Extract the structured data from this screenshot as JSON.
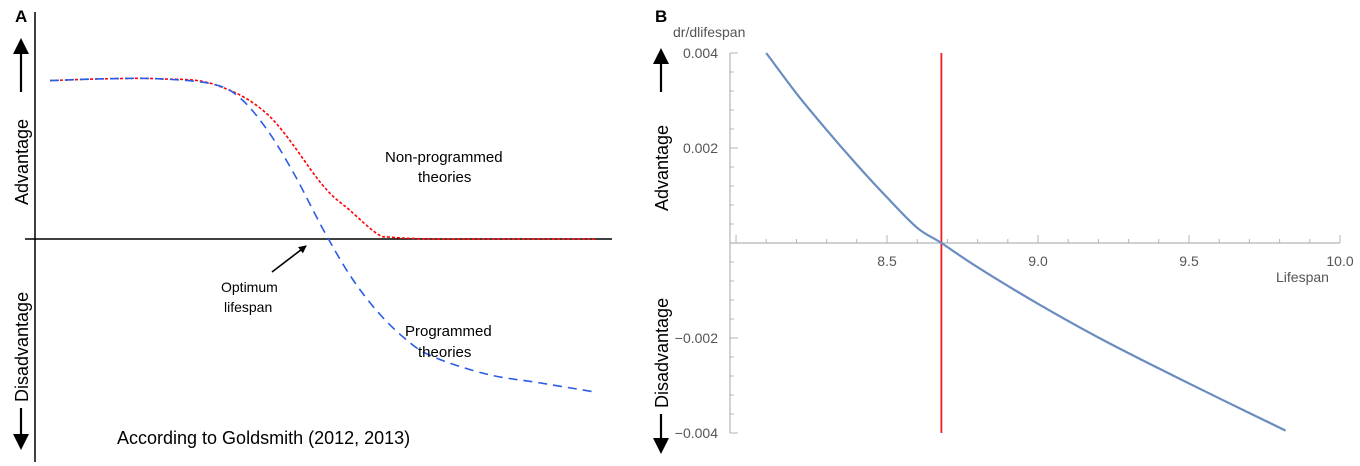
{
  "chart_data": [
    {
      "type": "line",
      "panel_label": "A",
      "title": "",
      "xlabel": "",
      "ylabel_positive": "Advantage",
      "ylabel_negative": "Disadvantage",
      "annotations": {
        "upper_curve_label": [
          "Non-programmed",
          "theories"
        ],
        "lower_curve_label": [
          "Programmed",
          "theories"
        ],
        "arrow_label": [
          "Optimum",
          "lifespan"
        ],
        "caption": "According to Goldsmith (2012, 2013)"
      },
      "series": [
        {
          "style": "red dotted",
          "color": "#ff0000",
          "x": [
            0,
            0.1,
            0.2,
            0.3,
            0.4,
            0.5,
            0.55,
            0.6,
            0.625,
            0.7,
            0.8,
            0.9,
            1.0
          ],
          "y": [
            0.88,
            0.89,
            0.89,
            0.86,
            0.69,
            0.3,
            0.16,
            0.03,
            0.01,
            0.0,
            0.0,
            0.0,
            0.0
          ]
        },
        {
          "style": "blue dashed",
          "color": "#2b5ce6",
          "x": [
            0,
            0.1,
            0.2,
            0.3,
            0.35,
            0.4,
            0.45,
            0.5,
            0.55,
            0.6,
            0.65,
            0.7,
            0.8,
            0.9,
            1.0
          ],
          "y": [
            0.88,
            0.89,
            0.89,
            0.86,
            0.78,
            0.6,
            0.35,
            0.06,
            -0.2,
            -0.4,
            -0.55,
            -0.65,
            -0.75,
            -0.8,
            -0.85
          ]
        }
      ]
    },
    {
      "type": "line",
      "panel_label": "B",
      "title": "",
      "ylabel": "dr/dlifespan",
      "xlabel": "Lifespan",
      "ylabel_positive": "Advantage",
      "ylabel_negative": "Disadvantage",
      "xlim": [
        7.98,
        10.0
      ],
      "ylim": [
        -0.004,
        0.004
      ],
      "x_ticks": [
        8.5,
        9.0,
        9.5,
        10.0
      ],
      "x_tick_labels": [
        "8.5",
        "9.0",
        "9.5",
        "10.0"
      ],
      "y_ticks": [
        -0.004,
        -0.002,
        0.002,
        0.004
      ],
      "y_tick_labels": [
        "−0.004",
        "−0.002",
        "0.002",
        "0.004"
      ],
      "vline_x": 8.68,
      "vline_color": "#e82020",
      "series": [
        {
          "color": "#6a8cc0",
          "x": [
            8.1,
            8.2,
            8.3,
            8.4,
            8.5,
            8.6,
            8.68,
            8.8,
            9.0,
            9.2,
            9.4,
            9.6,
            9.82
          ],
          "y": [
            0.004,
            0.00315,
            0.00238,
            0.00165,
            0.00096,
            0.00032,
            0.0,
            -0.00051,
            -0.00128,
            -0.00199,
            -0.00264,
            -0.00327,
            -0.00395
          ]
        }
      ]
    }
  ]
}
